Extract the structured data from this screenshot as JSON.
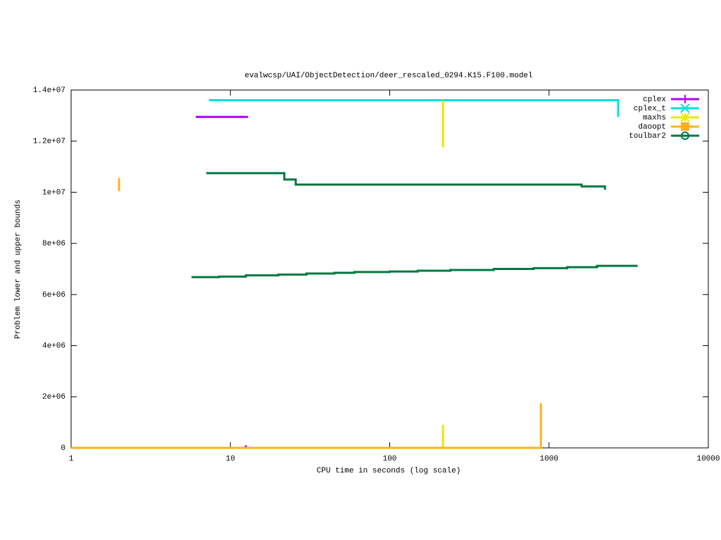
{
  "chart_data": {
    "type": "line",
    "title": "evalwcsp/UAI/ObjectDetection/deer_rescaled_0294.K15.F100.model",
    "x_label": "CPU time in seconds (log scale)",
    "y_label": "Problem lower and upper bounds",
    "log_x": true,
    "xlim": [
      1,
      10000
    ],
    "xticks": [
      1,
      10,
      100,
      1000,
      10000
    ],
    "ylim": [
      0,
      14000000
    ],
    "yticks": [
      0,
      {
        "value": 2000000,
        "label": "2e+06"
      },
      {
        "value": 4000000,
        "label": "4e+06"
      },
      {
        "value": 6000000,
        "label": "6e+06"
      },
      {
        "value": 8000000,
        "label": "8e+06"
      },
      {
        "value": 10000000,
        "label": "1e+07"
      },
      {
        "value": 12000000,
        "label": "1.2e+07"
      },
      {
        "value": 14000000,
        "label": "1.4e+07"
      }
    ],
    "legend": "top-right",
    "series": [
      {
        "name": "cplex",
        "color": "#b000ff",
        "marker": "plus",
        "x": [
          6.06,
          12.9,
          12.5,
          12.5,
          12.5
        ],
        "values": [
          12950000,
          12950000,
          null,
          0,
          100000
        ]
      },
      {
        "name": "cplex_t",
        "color": "#00e0e0",
        "marker": "cross",
        "x": [
          7.35,
          2720,
          2720
        ],
        "values": [
          13600000,
          13600000,
          12950000
        ]
      },
      {
        "name": "maxhs",
        "color": "#e8e800",
        "marker": "star",
        "x": [
          216,
          216,
          216,
          216,
          216
        ],
        "values": [
          13600000,
          11750000,
          null,
          0,
          900000
        ]
      },
      {
        "name": "daoopt",
        "color": "#ffb020",
        "marker": "square",
        "x": [
          2,
          2,
          2,
          1,
          889,
          889
        ],
        "values": [
          10050000,
          10550000,
          null,
          0,
          0,
          1750000
        ]
      },
      {
        "name": "toulbar2",
        "color": "#007840",
        "marker": "circle",
        "x": [
          7.06,
          21.8,
          21.8,
          25.7,
          25.7,
          1603,
          1603,
          2245,
          2245,
          2245,
          5.7,
          8.5,
          8.5,
          12.5,
          12.5,
          20,
          20,
          30,
          30,
          45,
          45,
          60,
          60,
          100,
          100,
          150,
          150,
          240,
          240,
          450,
          450,
          800,
          800,
          1300,
          1300,
          2000,
          2000,
          3600
        ],
        "values": [
          10750000,
          10750000,
          10500000,
          10500000,
          10300000,
          10300000,
          10230000,
          10230000,
          10100000,
          null,
          6680000,
          6680000,
          6700000,
          6700000,
          6750000,
          6750000,
          6780000,
          6780000,
          6820000,
          6820000,
          6850000,
          6850000,
          6880000,
          6880000,
          6900000,
          6900000,
          6930000,
          6930000,
          6960000,
          6960000,
          7000000,
          7000000,
          7030000,
          7030000,
          7070000,
          7070000,
          7120000,
          7120000
        ]
      }
    ]
  }
}
